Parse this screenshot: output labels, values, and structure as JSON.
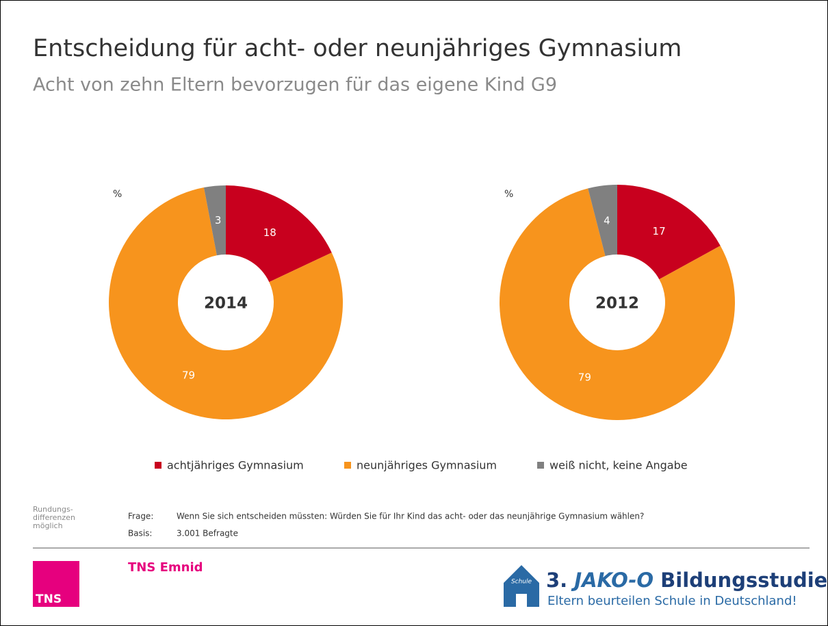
{
  "title": "Entscheidung für acht- oder neunjähriges Gymnasium",
  "subtitle": "Acht von zehn Eltern bevorzugen für das eigene Kind G9",
  "chart_data": [
    {
      "type": "donut",
      "center_label": "2014",
      "unit_label": "%",
      "categories": [
        "achtjähriges Gymnasium",
        "neunjähriges Gymnasium",
        "weiß nicht, keine Angabe"
      ],
      "values": [
        18,
        79,
        3
      ],
      "colors": [
        "#c8001e",
        "#f7941d",
        "#808080"
      ]
    },
    {
      "type": "donut",
      "center_label": "2012",
      "unit_label": "%",
      "categories": [
        "achtjähriges Gymnasium",
        "neunjähriges Gymnasium",
        "weiß nicht, keine Angabe"
      ],
      "values": [
        17,
        79,
        4
      ],
      "colors": [
        "#c8001e",
        "#f7941d",
        "#808080"
      ]
    }
  ],
  "footer": {
    "note": [
      "Rundungs-",
      "differenzen",
      "möglich"
    ],
    "question_label": "Frage:",
    "question": "Wenn Sie sich entscheiden müssten: Würden Sie für Ihr Kind das acht- oder das neunjährige Gymnasium wählen?",
    "base_label": "Basis:",
    "base": "3.001 Befragte",
    "institute": "TNS Emnid",
    "tns_logo": "TNS"
  },
  "logo": {
    "house": "Schule",
    "number": "3.",
    "brand": "JAKO-O",
    "name": "Bildungsstudie",
    "tagline": "Eltern beurteilen Schule in Deutschland!"
  }
}
